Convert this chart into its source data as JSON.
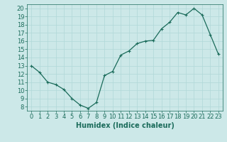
{
  "x": [
    0,
    1,
    2,
    3,
    4,
    5,
    6,
    7,
    8,
    9,
    10,
    11,
    12,
    13,
    14,
    15,
    16,
    17,
    18,
    19,
    20,
    21,
    22,
    23
  ],
  "y": [
    13,
    12.2,
    11,
    10.7,
    10.1,
    9.0,
    8.2,
    7.8,
    8.5,
    11.8,
    12.3,
    14.3,
    14.8,
    15.7,
    16.0,
    16.1,
    17.5,
    18.3,
    19.5,
    19.2,
    20.0,
    19.2,
    16.8,
    14.4
  ],
  "line_color": "#1a6b5a",
  "marker": "+",
  "marker_size": 3,
  "marker_lw": 0.8,
  "line_width": 0.9,
  "bg_color": "#cce8e8",
  "grid_color": "#b0d8d8",
  "xlabel": "Humidex (Indice chaleur)",
  "xlim": [
    -0.5,
    23.5
  ],
  "ylim": [
    7.5,
    20.5
  ],
  "yticks": [
    8,
    9,
    10,
    11,
    12,
    13,
    14,
    15,
    16,
    17,
    18,
    19,
    20
  ],
  "xticks": [
    0,
    1,
    2,
    3,
    4,
    5,
    6,
    7,
    8,
    9,
    10,
    11,
    12,
    13,
    14,
    15,
    16,
    17,
    18,
    19,
    20,
    21,
    22,
    23
  ],
  "tick_fontsize": 6.0,
  "xlabel_fontsize": 7.0
}
